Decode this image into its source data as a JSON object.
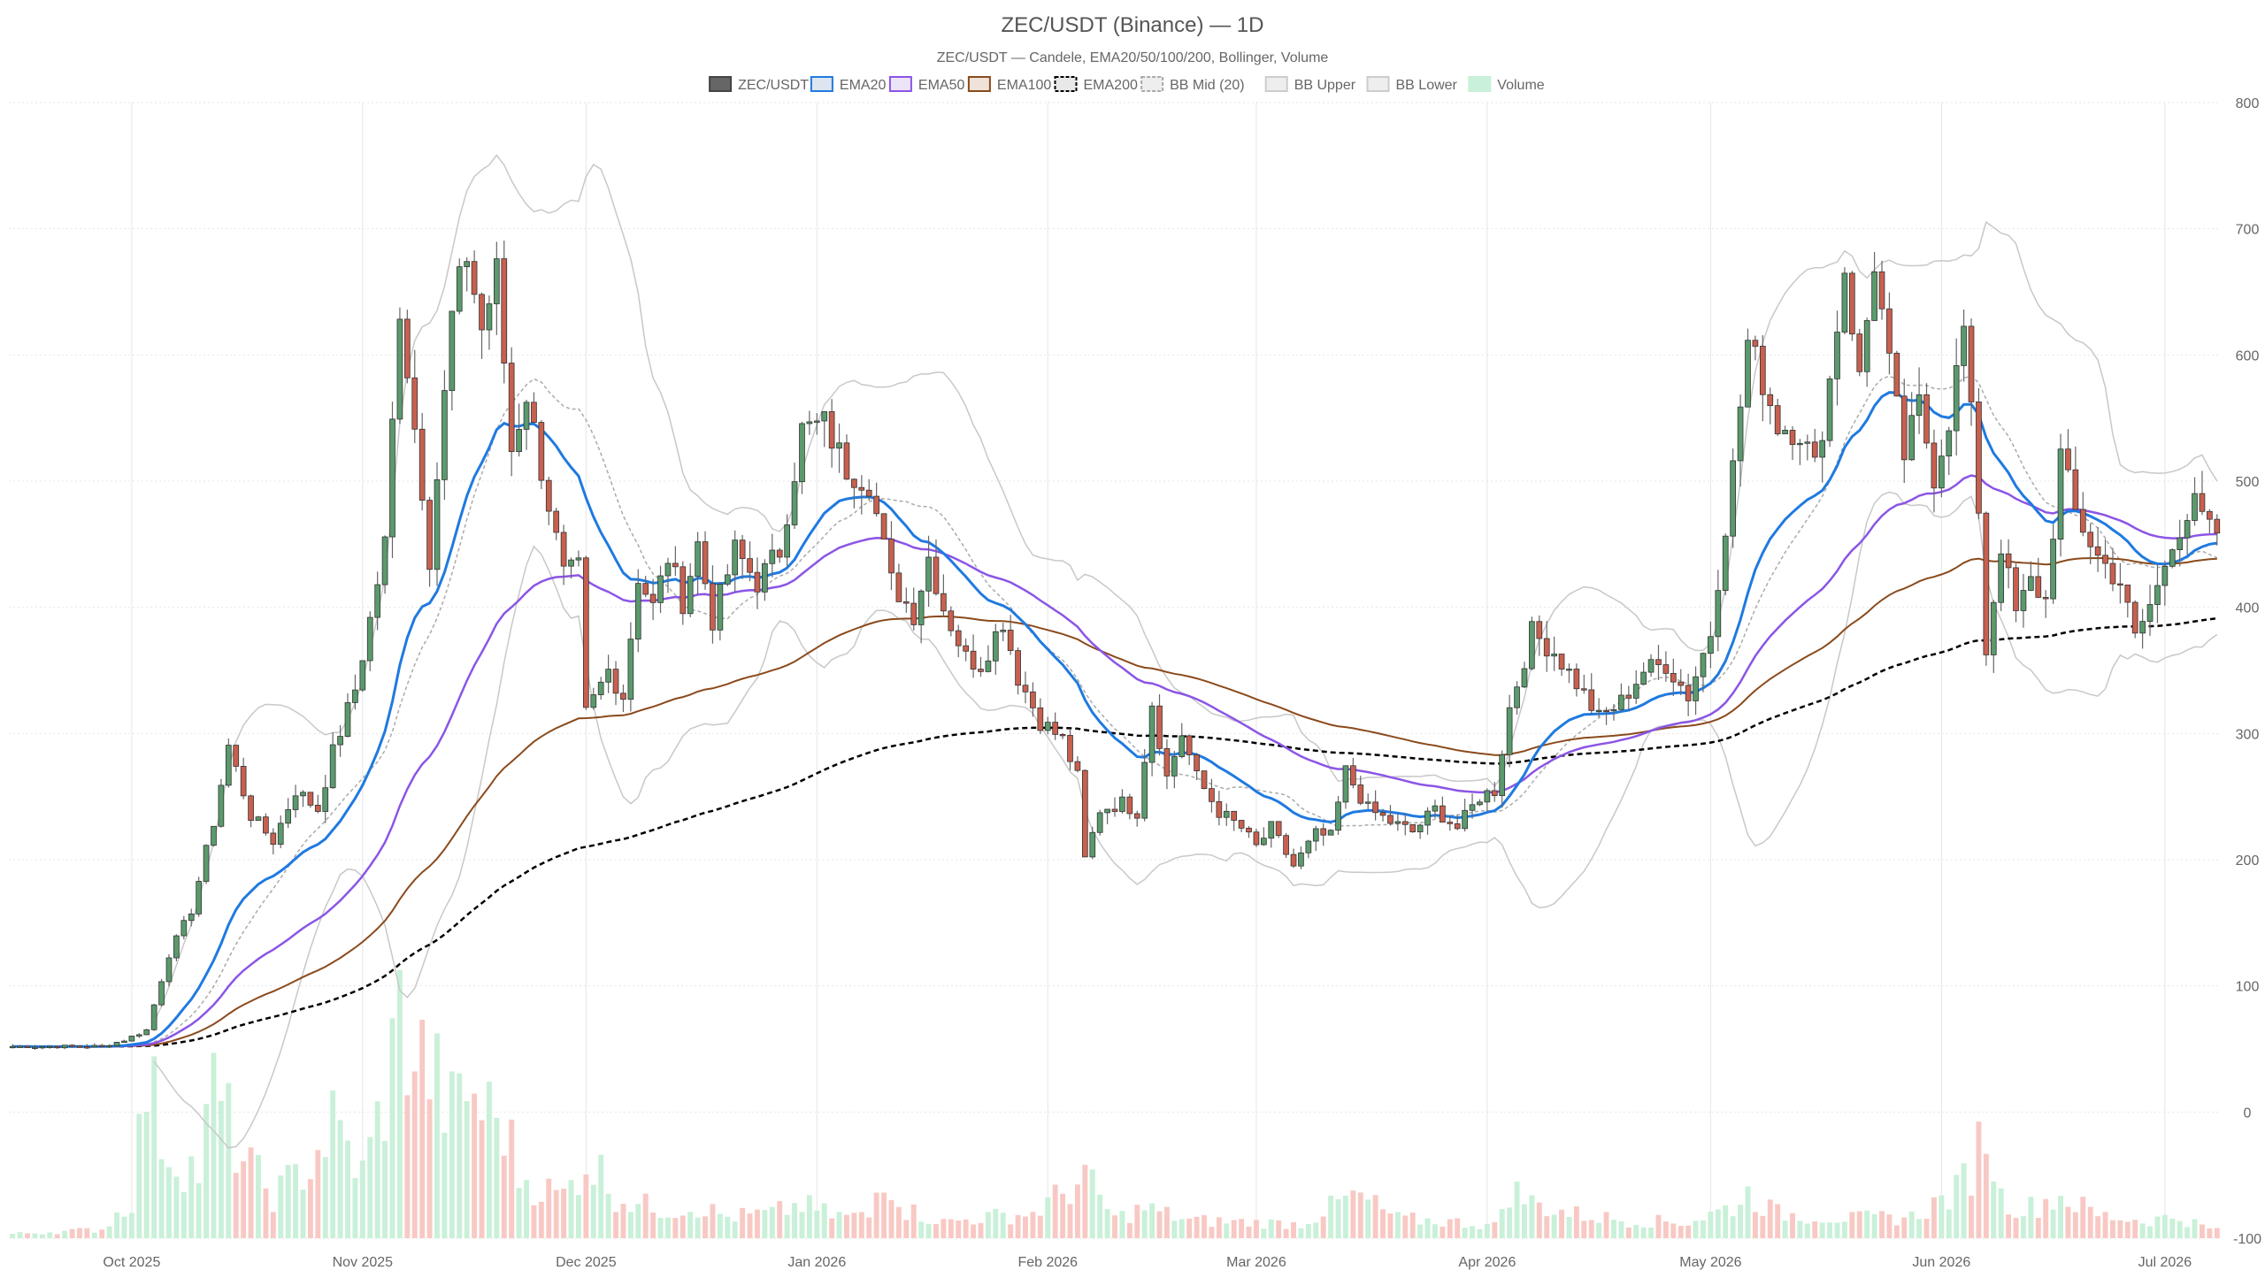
{
  "chart_data": {
    "type": "candlestick",
    "title": "ZEC/USDT (Binance) — 1D",
    "subtitle": "ZEC/USDT — Candele, EMA20/50/100/200, Bollinger, Volume",
    "legend": [
      {
        "name": "ZEC/USDT",
        "fill": "#666666",
        "stroke": "#444444",
        "dash": false
      },
      {
        "name": "EMA20",
        "fill": "#dde6f0",
        "stroke": "#1f7ae0",
        "dash": false
      },
      {
        "name": "EMA50",
        "fill": "#ece4f7",
        "stroke": "#8b55e6",
        "dash": false
      },
      {
        "name": "EMA100",
        "fill": "#efe2d8",
        "stroke": "#8b4a1c",
        "dash": false
      },
      {
        "name": "EMA200",
        "fill": "#e8e8e8",
        "stroke": "#000000",
        "dash": true
      },
      {
        "name": "BB Mid (20)",
        "fill": "#eeeeee",
        "stroke": "#aaaaaa",
        "dash": true
      },
      {
        "name": "BB Upper",
        "fill": "#eeeeee",
        "stroke": "#cccccc",
        "dash": false
      },
      {
        "name": "BB Lower",
        "fill": "#eeeeee",
        "stroke": "#cccccc",
        "dash": false
      },
      {
        "name": "Volume",
        "fill": "#c9f0d8",
        "stroke": "#c9f0d8",
        "dash": false
      }
    ],
    "y_axis": {
      "min": -100,
      "max": 800,
      "ticks": [
        -100,
        0,
        100,
        200,
        300,
        400,
        500,
        600,
        700,
        800
      ],
      "position": "right"
    },
    "x_axis": {
      "start": "2025-09-15",
      "end": "2026-07-08",
      "ticks": [
        {
          "date": "2025-10-01",
          "label": "Oct 2025"
        },
        {
          "date": "2025-11-01",
          "label": "Nov 2025"
        },
        {
          "date": "2025-12-01",
          "label": "Dec 2025"
        },
        {
          "date": "2026-01-01",
          "label": "Jan 2026"
        },
        {
          "date": "2026-02-01",
          "label": "Feb 2026"
        },
        {
          "date": "2026-03-01",
          "label": "Mar 2026"
        },
        {
          "date": "2026-04-01",
          "label": "Apr 2026"
        },
        {
          "date": "2026-05-01",
          "label": "May 2026"
        },
        {
          "date": "2026-06-01",
          "label": "Jun 2026"
        },
        {
          "date": "2026-07-01",
          "label": "Jul 2026"
        }
      ]
    },
    "grid": true,
    "legend_position": "top-center",
    "colors": {
      "up": "#5a9a6c",
      "down": "#c8604f",
      "vol_up": "#c9f0d8",
      "vol_down": "#f8c9c4",
      "candle_outline": "#333333",
      "wick": "#666666"
    },
    "close_path": [
      [
        "2025-09-15",
        52
      ],
      [
        "2025-09-27",
        52
      ],
      [
        "2025-09-30",
        57
      ],
      [
        "2025-10-03",
        65
      ],
      [
        "2025-10-06",
        125
      ],
      [
        "2025-10-09",
        160
      ],
      [
        "2025-10-12",
        230
      ],
      [
        "2025-10-14",
        290
      ],
      [
        "2025-10-17",
        235
      ],
      [
        "2025-10-20",
        215
      ],
      [
        "2025-10-23",
        255
      ],
      [
        "2025-10-26",
        240
      ],
      [
        "2025-10-28",
        285
      ],
      [
        "2025-10-31",
        335
      ],
      [
        "2025-11-02",
        390
      ],
      [
        "2025-11-04",
        450
      ],
      [
        "2025-11-06",
        640
      ],
      [
        "2025-11-07",
        590
      ],
      [
        "2025-11-09",
        495
      ],
      [
        "2025-11-10",
        440
      ],
      [
        "2025-11-13",
        630
      ],
      [
        "2025-11-15",
        680
      ],
      [
        "2025-11-17",
        620
      ],
      [
        "2025-11-19",
        665
      ],
      [
        "2025-11-21",
        525
      ],
      [
        "2025-11-23",
        570
      ],
      [
        "2025-11-25",
        510
      ],
      [
        "2025-11-28",
        425
      ],
      [
        "2025-11-30",
        430
      ],
      [
        "2025-12-01",
        315
      ],
      [
        "2025-12-04",
        350
      ],
      [
        "2025-12-06",
        330
      ],
      [
        "2025-12-08",
        425
      ],
      [
        "2025-12-10",
        400
      ],
      [
        "2025-12-12",
        440
      ],
      [
        "2025-12-14",
        405
      ],
      [
        "2025-12-16",
        450
      ],
      [
        "2025-12-18",
        390
      ],
      [
        "2025-12-21",
        445
      ],
      [
        "2025-12-24",
        420
      ],
      [
        "2025-12-27",
        445
      ],
      [
        "2025-12-30",
        540
      ],
      [
        "2026-01-02",
        545
      ],
      [
        "2026-01-05",
        510
      ],
      [
        "2026-01-08",
        500
      ],
      [
        "2026-01-11",
        420
      ],
      [
        "2026-01-14",
        395
      ],
      [
        "2026-01-16",
        440
      ],
      [
        "2026-01-18",
        400
      ],
      [
        "2026-01-21",
        360
      ],
      [
        "2026-01-23",
        355
      ],
      [
        "2026-01-26",
        390
      ],
      [
        "2026-01-28",
        345
      ],
      [
        "2026-01-31",
        310
      ],
      [
        "2026-02-03",
        295
      ],
      [
        "2026-02-05",
        265
      ],
      [
        "2026-02-06",
        200
      ],
      [
        "2026-02-08",
        240
      ],
      [
        "2026-02-11",
        245
      ],
      [
        "2026-02-13",
        238
      ],
      [
        "2026-02-15",
        325
      ],
      [
        "2026-02-17",
        265
      ],
      [
        "2026-02-19",
        300
      ],
      [
        "2026-02-21",
        265
      ],
      [
        "2026-02-24",
        238
      ],
      [
        "2026-02-27",
        225
      ],
      [
        "2026-03-01",
        210
      ],
      [
        "2026-03-03",
        225
      ],
      [
        "2026-03-06",
        195
      ],
      [
        "2026-03-09",
        220
      ],
      [
        "2026-03-11",
        218
      ],
      [
        "2026-03-13",
        270
      ],
      [
        "2026-03-16",
        240
      ],
      [
        "2026-03-19",
        230
      ],
      [
        "2026-03-22",
        222
      ],
      [
        "2026-03-25",
        240
      ],
      [
        "2026-03-28",
        225
      ],
      [
        "2026-03-31",
        250
      ],
      [
        "2026-04-02",
        255
      ],
      [
        "2026-04-04",
        320
      ],
      [
        "2026-04-07",
        380
      ],
      [
        "2026-04-10",
        365
      ],
      [
        "2026-04-13",
        340
      ],
      [
        "2026-04-16",
        312
      ],
      [
        "2026-04-19",
        325
      ],
      [
        "2026-04-22",
        350
      ],
      [
        "2026-04-25",
        355
      ],
      [
        "2026-04-28",
        330
      ],
      [
        "2026-05-01",
        380
      ],
      [
        "2026-05-04",
        510
      ],
      [
        "2026-05-06",
        610
      ],
      [
        "2026-05-08",
        580
      ],
      [
        "2026-05-10",
        545
      ],
      [
        "2026-05-13",
        540
      ],
      [
        "2026-05-15",
        510
      ],
      [
        "2026-05-17",
        580
      ],
      [
        "2026-05-19",
        670
      ],
      [
        "2026-05-21",
        580
      ],
      [
        "2026-05-23",
        675
      ],
      [
        "2026-05-25",
        590
      ],
      [
        "2026-05-27",
        520
      ],
      [
        "2026-05-29",
        560
      ],
      [
        "2026-05-31",
        505
      ],
      [
        "2026-06-02",
        550
      ],
      [
        "2026-06-04",
        620
      ],
      [
        "2026-06-06",
        480
      ],
      [
        "2026-06-07",
        365
      ],
      [
        "2026-06-09",
        450
      ],
      [
        "2026-06-11",
        395
      ],
      [
        "2026-06-13",
        420
      ],
      [
        "2026-06-15",
        405
      ],
      [
        "2026-06-17",
        520
      ],
      [
        "2026-06-19",
        475
      ],
      [
        "2026-06-22",
        440
      ],
      [
        "2026-06-25",
        420
      ],
      [
        "2026-06-27",
        375
      ],
      [
        "2026-06-30",
        415
      ],
      [
        "2026-07-02",
        455
      ],
      [
        "2026-07-05",
        480
      ],
      [
        "2026-07-07",
        460
      ]
    ],
    "volume_path": [
      [
        "2025-09-15",
        12
      ],
      [
        "2025-09-27",
        25
      ],
      [
        "2025-10-01",
        110
      ],
      [
        "2025-10-03",
        450
      ],
      [
        "2025-10-06",
        240
      ],
      [
        "2025-10-10",
        190
      ],
      [
        "2025-10-12",
        420
      ],
      [
        "2025-10-16",
        220
      ],
      [
        "2025-10-20",
        120
      ],
      [
        "2025-10-25",
        210
      ],
      [
        "2025-10-28",
        320
      ],
      [
        "2025-11-01",
        180
      ],
      [
        "2025-11-04",
        400
      ],
      [
        "2025-11-06",
        620
      ],
      [
        "2025-11-08",
        520
      ],
      [
        "2025-11-10",
        480
      ],
      [
        "2025-11-13",
        350
      ],
      [
        "2025-11-15",
        420
      ],
      [
        "2025-11-18",
        350
      ],
      [
        "2025-11-20",
        330
      ],
      [
        "2025-11-22",
        180
      ],
      [
        "2025-11-25",
        140
      ],
      [
        "2025-11-28",
        120
      ],
      [
        "2025-12-01",
        220
      ],
      [
        "2025-12-03",
        185
      ],
      [
        "2025-12-05",
        120
      ],
      [
        "2025-12-08",
        95
      ],
      [
        "2025-12-12",
        80
      ],
      [
        "2025-12-16",
        90
      ],
      [
        "2025-12-20",
        60
      ],
      [
        "2025-12-26",
        70
      ],
      [
        "2025-12-30",
        95
      ],
      [
        "2026-01-03",
        65
      ],
      [
        "2026-01-08",
        60
      ],
      [
        "2026-01-10",
        195
      ],
      [
        "2026-01-13",
        80
      ],
      [
        "2026-01-18",
        45
      ],
      [
        "2026-01-24",
        60
      ],
      [
        "2026-01-30",
        70
      ],
      [
        "2026-02-06",
        170
      ],
      [
        "2026-02-10",
        55
      ],
      [
        "2026-02-14",
        85
      ],
      [
        "2026-02-20",
        50
      ],
      [
        "2026-02-28",
        45
      ],
      [
        "2026-03-07",
        40
      ],
      [
        "2026-03-13",
        110
      ],
      [
        "2026-03-15",
        115
      ],
      [
        "2026-03-20",
        55
      ],
      [
        "2026-03-28",
        45
      ],
      [
        "2026-04-02",
        35
      ],
      [
        "2026-04-04",
        140
      ],
      [
        "2026-04-07",
        100
      ],
      [
        "2026-04-12",
        70
      ],
      [
        "2026-04-20",
        50
      ],
      [
        "2026-04-28",
        45
      ],
      [
        "2026-05-04",
        90
      ],
      [
        "2026-05-06",
        125
      ],
      [
        "2026-05-10",
        70
      ],
      [
        "2026-05-20",
        55
      ],
      [
        "2026-05-28",
        60
      ],
      [
        "2026-06-03",
        130
      ],
      [
        "2026-06-05",
        200
      ],
      [
        "2026-06-07",
        320
      ],
      [
        "2026-06-09",
        115
      ],
      [
        "2026-06-12",
        80
      ],
      [
        "2026-06-17",
        120
      ],
      [
        "2026-06-22",
        65
      ],
      [
        "2026-06-28",
        50
      ],
      [
        "2026-07-03",
        60
      ],
      [
        "2026-07-07",
        25
      ]
    ]
  }
}
